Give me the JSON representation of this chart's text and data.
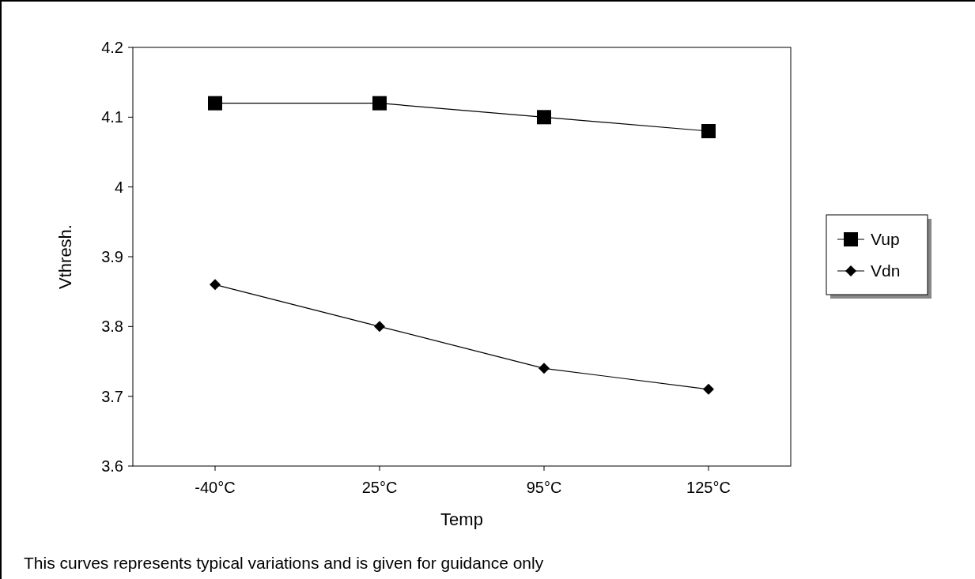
{
  "chart_data": {
    "type": "line",
    "xlabel": "Temp",
    "ylabel": "Vthresh.",
    "categories": [
      "-40°C",
      "25°C",
      "95°C",
      "125°C"
    ],
    "series": [
      {
        "name": "Vup",
        "color": "#000000",
        "marker": "square",
        "values": [
          4.12,
          4.12,
          4.1,
          4.08
        ]
      },
      {
        "name": "Vdn",
        "color": "#000000",
        "marker": "diamond",
        "values": [
          3.86,
          3.8,
          3.74,
          3.71
        ]
      }
    ],
    "ylim": [
      3.6,
      4.2
    ],
    "yticks": [
      3.6,
      3.7,
      3.8,
      3.9,
      4,
      4.1,
      4.2
    ],
    "grid": false,
    "legend": "right",
    "line_style": "solid",
    "annotations": [
      "This curves represents typical variations and is given for guidance only"
    ]
  }
}
